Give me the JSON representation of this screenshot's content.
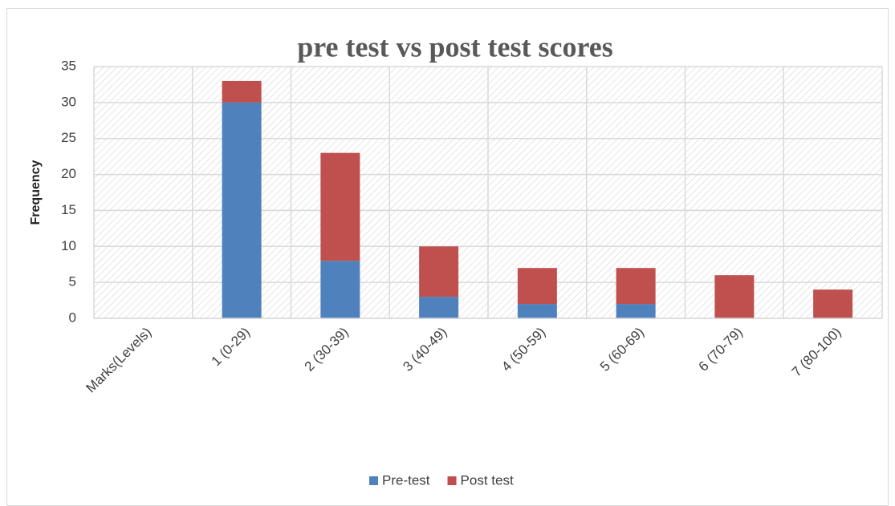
{
  "chart_data": {
    "type": "stacked_bar",
    "title": "pre test  vs post test scores",
    "ylabel": "Frequency",
    "categories": [
      "Marks(Levels)",
      "1 (0-29)",
      "2 (30-39)",
      "3 (40-49)",
      "4 (50-59)",
      "5 (60-69)",
      "6 (70-79)",
      "7 (80-100)"
    ],
    "series": [
      {
        "name": "Pre-test",
        "color": "#4f81bd",
        "values": [
          null,
          30,
          8,
          3,
          2,
          2,
          0,
          0
        ]
      },
      {
        "name": "Post test",
        "color": "#c0504d",
        "values": [
          null,
          3,
          15,
          7,
          5,
          5,
          6,
          4
        ]
      }
    ],
    "ylim": [
      0,
      35
    ],
    "yticks": [
      0,
      5,
      10,
      15,
      20,
      25,
      30,
      35
    ],
    "grid": true,
    "legend": "bottom"
  }
}
